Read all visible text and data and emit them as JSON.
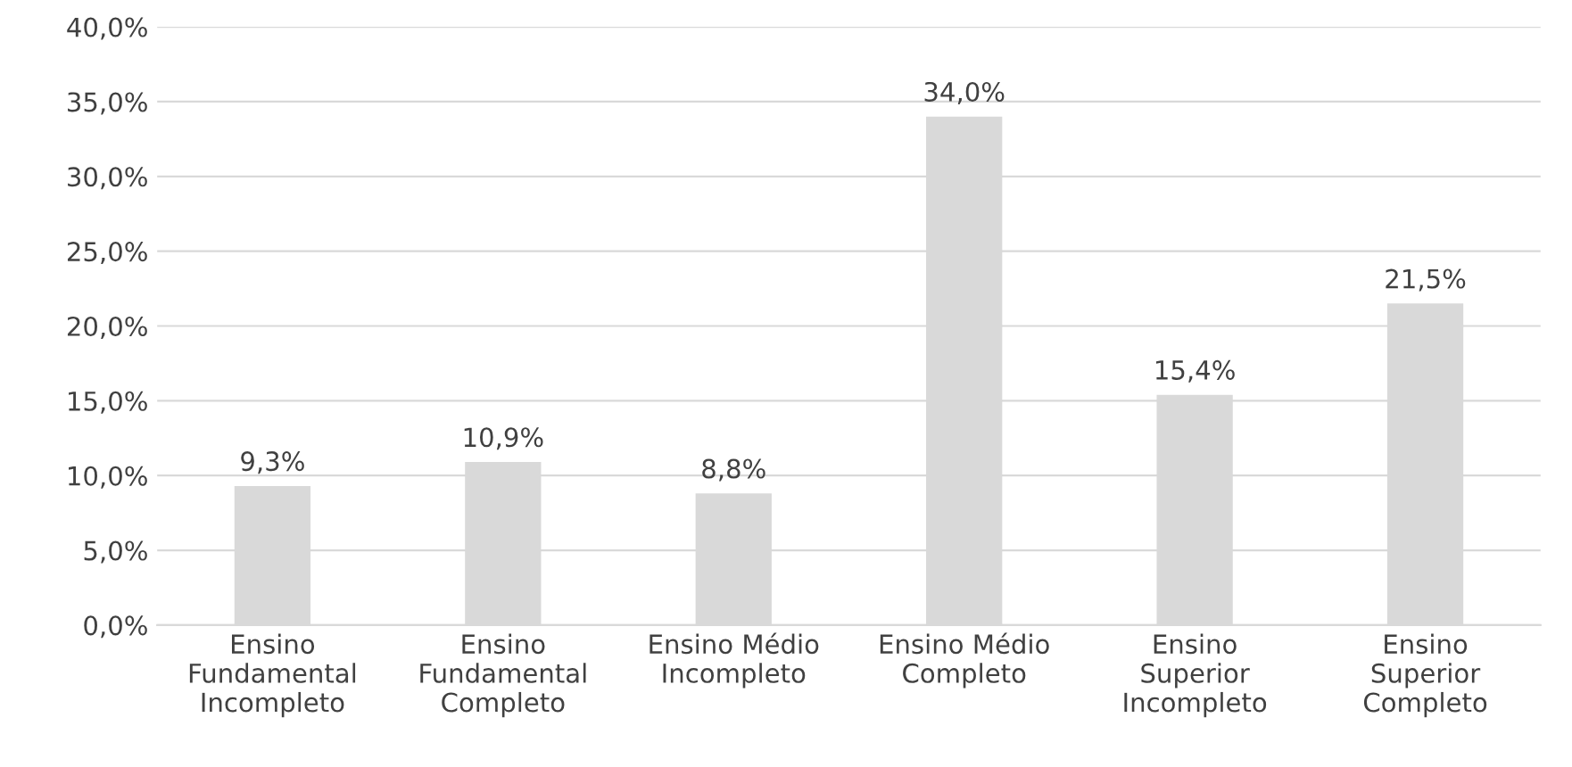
{
  "chart_data": {
    "type": "bar",
    "categories": [
      "Ensino\nFundamental\nIncompleto",
      "Ensino\nFundamental\nCompleto",
      "Ensino Médio\nIncompleto",
      "Ensino Médio\nCompleto",
      "Ensino\nSuperior\nIncompleto",
      "Ensino\nSuperior\nCompleto"
    ],
    "values": [
      9.3,
      10.9,
      8.8,
      34.0,
      15.4,
      21.5
    ],
    "value_labels": [
      "9,3%",
      "10,9%",
      "8,8%",
      "34,0%",
      "15,4%",
      "21,5%"
    ],
    "color": "#d9d9d9",
    "ylim": [
      0,
      40
    ],
    "yticks": [
      {
        "value": 0,
        "label": "0,0%"
      },
      {
        "value": 5,
        "label": "5,0%"
      },
      {
        "value": 10,
        "label": "10,0%"
      },
      {
        "value": 15,
        "label": "15,0%"
      },
      {
        "value": 20,
        "label": "20,0%"
      },
      {
        "value": 25,
        "label": "25,0%"
      },
      {
        "value": 30,
        "label": "30,0%"
      },
      {
        "value": 35,
        "label": "35,0%"
      },
      {
        "value": 40,
        "label": "40,0%"
      }
    ],
    "grid": "y"
  }
}
